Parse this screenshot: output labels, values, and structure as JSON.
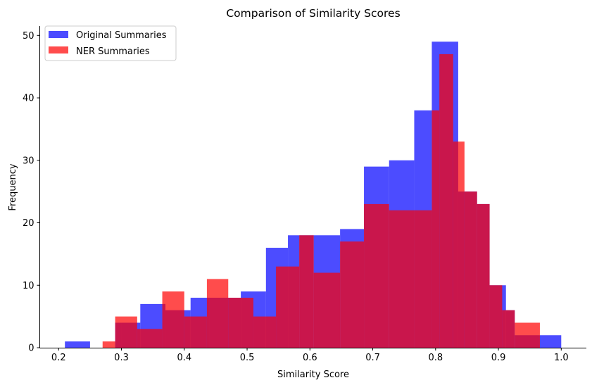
{
  "chart_data": {
    "type": "histogram",
    "title": "Comparison of Similarity Scores",
    "xlabel": "Similarity Score",
    "ylabel": "Frequency",
    "xlim": [
      0.17,
      1.04
    ],
    "ylim": [
      0,
      51.5
    ],
    "x_ticks": [
      "0.2",
      "0.3",
      "0.4",
      "0.5",
      "0.6",
      "0.7",
      "0.8",
      "0.9",
      "1.0"
    ],
    "y_ticks": [
      "0",
      "10",
      "20",
      "30",
      "40",
      "50"
    ],
    "grid": false,
    "legend_position": "top-left",
    "series": [
      {
        "name": "Original Summaries",
        "color": "#0000ff",
        "opacity": 0.7,
        "bins": [
          [
            0.21,
            0.25,
            1
          ],
          [
            0.29,
            0.3,
            4
          ],
          [
            0.3,
            0.33,
            4
          ],
          [
            0.33,
            0.37,
            7
          ],
          [
            0.37,
            0.41,
            6
          ],
          [
            0.41,
            0.44,
            8
          ],
          [
            0.44,
            0.49,
            8
          ],
          [
            0.49,
            0.53,
            9
          ],
          [
            0.53,
            0.565,
            16
          ],
          [
            0.565,
            0.583,
            18
          ],
          [
            0.583,
            0.606,
            18
          ],
          [
            0.606,
            0.648,
            18
          ],
          [
            0.648,
            0.686,
            19
          ],
          [
            0.686,
            0.726,
            29
          ],
          [
            0.726,
            0.766,
            30
          ],
          [
            0.766,
            0.794,
            38
          ],
          [
            0.794,
            0.836,
            49
          ],
          [
            0.836,
            0.866,
            25
          ],
          [
            0.866,
            0.886,
            23
          ],
          [
            0.886,
            0.912,
            10
          ],
          [
            0.912,
            0.926,
            6
          ],
          [
            0.926,
            0.966,
            2
          ],
          [
            0.966,
            1.0,
            2
          ]
        ]
      },
      {
        "name": "NER Summaries",
        "color": "#ff0000",
        "opacity": 0.7,
        "bins": [
          [
            0.27,
            0.29,
            1
          ],
          [
            0.29,
            0.325,
            5
          ],
          [
            0.325,
            0.365,
            3
          ],
          [
            0.365,
            0.4,
            9
          ],
          [
            0.4,
            0.436,
            5
          ],
          [
            0.436,
            0.47,
            11
          ],
          [
            0.47,
            0.51,
            8
          ],
          [
            0.51,
            0.546,
            5
          ],
          [
            0.546,
            0.583,
            13
          ],
          [
            0.583,
            0.606,
            18
          ],
          [
            0.606,
            0.648,
            12
          ],
          [
            0.648,
            0.686,
            17
          ],
          [
            0.686,
            0.726,
            23
          ],
          [
            0.726,
            0.766,
            22
          ],
          [
            0.766,
            0.794,
            22
          ],
          [
            0.794,
            0.806,
            38
          ],
          [
            0.806,
            0.828,
            47
          ],
          [
            0.828,
            0.846,
            33
          ],
          [
            0.846,
            0.866,
            25
          ],
          [
            0.866,
            0.886,
            23
          ],
          [
            0.886,
            0.906,
            10
          ],
          [
            0.906,
            0.926,
            6
          ],
          [
            0.926,
            0.966,
            4
          ],
          [
            0.966,
            0.966,
            0
          ]
        ]
      }
    ]
  }
}
